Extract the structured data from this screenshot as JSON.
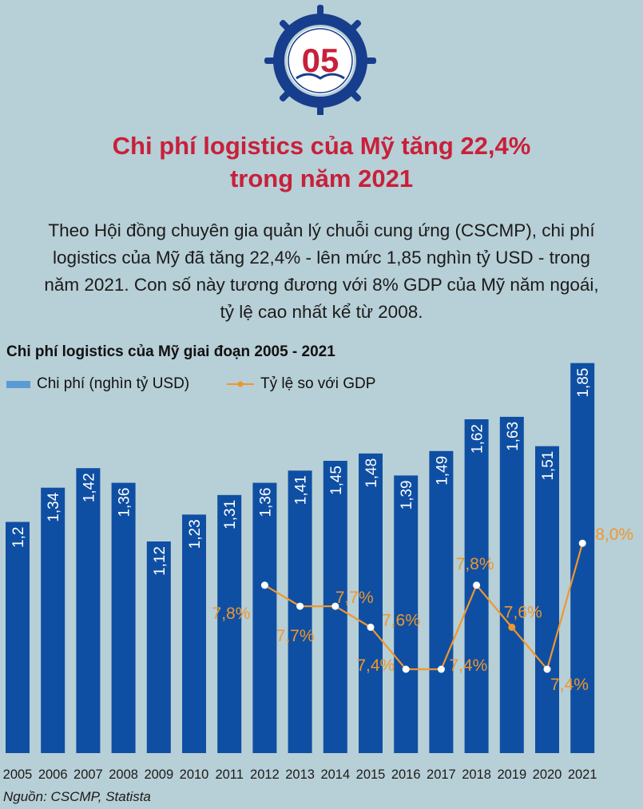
{
  "header": {
    "number": "05",
    "title_line1": "Chi phí logistics của Mỹ tăng 22,4%",
    "title_line2": "trong năm 2021"
  },
  "intro": {
    "line1": "Theo Hội đồng chuyên gia quản lý chuỗi cung ứng (CSCMP), chi phí",
    "line2": "logistics của Mỹ đã tăng 22,4% - lên mức 1,85 nghìn tỷ USD - trong",
    "line3": "năm 2021. Con số này tương đương với 8% GDP của Mỹ năm ngoái,",
    "line4": "tỷ lệ cao nhất kể từ 2008."
  },
  "chart_data": {
    "type": "bar",
    "title": "Chi phí logistics của Mỹ giai đoạn 2005 - 2021",
    "categories": [
      "2005",
      "2006",
      "2007",
      "2008",
      "2009",
      "2010",
      "2011",
      "2012",
      "2013",
      "2014",
      "2015",
      "2016",
      "2017",
      "2018",
      "2019",
      "2020",
      "2021"
    ],
    "series": [
      {
        "name": "Chi phí (nghìn tỷ USD)",
        "type": "bar",
        "values": [
          1.2,
          1.34,
          1.42,
          1.36,
          1.12,
          1.23,
          1.31,
          1.36,
          1.41,
          1.45,
          1.48,
          1.39,
          1.49,
          1.62,
          1.63,
          1.51,
          1.85
        ],
        "labels": [
          "1,2",
          "1,34",
          "1,42",
          "1,36",
          "1,12",
          "1,23",
          "1,31",
          "1,36",
          "1,41",
          "1,45",
          "1,48",
          "1,39",
          "1,49",
          "1,62",
          "1,63",
          "1,51",
          "1,85"
        ],
        "color": "#0f4fa3"
      },
      {
        "name": "Tỷ lệ so với GDP",
        "type": "line",
        "x": [
          "2012",
          "2013",
          "2014",
          "2015",
          "2016",
          "2017",
          "2018",
          "2019",
          "2020",
          "2021"
        ],
        "values": [
          7.8,
          7.7,
          7.7,
          7.6,
          7.4,
          7.4,
          7.8,
          7.6,
          7.4,
          8.0
        ],
        "labels": [
          "7,8%",
          "7,7%",
          "7,7%",
          "7,6%",
          "7,4%",
          "7,4%",
          "7,8%",
          "7,6%",
          "7,4%",
          "8,0%"
        ],
        "color": "#f0962d"
      }
    ],
    "legend_position": "top-left",
    "legend_swatch_color": "#5b9bd5"
  },
  "source": "Nguồn: CSCMP, Statista",
  "colors": {
    "background": "#b7cfd6",
    "title": "#c8203a",
    "emblem": "#163e8c"
  }
}
